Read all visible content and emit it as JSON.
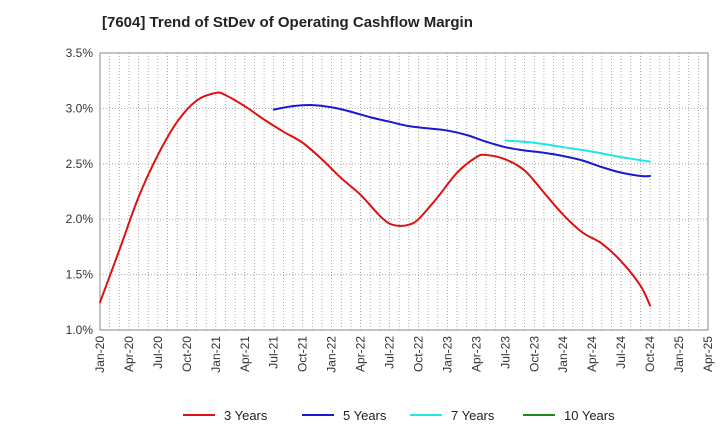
{
  "chart_data": {
    "type": "line",
    "title": "[7604]  Trend of StDev of Operating Cashflow Margin",
    "xlabel": "",
    "ylabel": "",
    "ylim": [
      1.0,
      3.5
    ],
    "y_ticks": [
      "1.0%",
      "1.5%",
      "2.0%",
      "2.5%",
      "3.0%",
      "3.5%"
    ],
    "y_tick_values": [
      1.0,
      1.5,
      2.0,
      2.5,
      3.0,
      3.5
    ],
    "x_range": [
      "2020-01",
      "2025-04"
    ],
    "x_tick_labels": [
      "Jan-20",
      "Apr-20",
      "Jul-20",
      "Oct-20",
      "Jan-21",
      "Apr-21",
      "Jul-21",
      "Oct-21",
      "Jan-22",
      "Apr-22",
      "Jul-22",
      "Oct-22",
      "Jan-23",
      "Apr-23",
      "Jul-23",
      "Oct-23",
      "Jan-24",
      "Apr-24",
      "Jul-24",
      "Oct-24",
      "Jan-25",
      "Apr-25"
    ],
    "x_tick_dates": [
      "2020-01",
      "2020-04",
      "2020-07",
      "2020-10",
      "2021-01",
      "2021-04",
      "2021-07",
      "2021-10",
      "2022-01",
      "2022-04",
      "2022-07",
      "2022-10",
      "2023-01",
      "2023-04",
      "2023-07",
      "2023-10",
      "2024-01",
      "2024-04",
      "2024-07",
      "2024-10",
      "2025-01",
      "2025-04"
    ],
    "grid": "dotted",
    "legend_position": "bottom",
    "series": [
      {
        "name": "3 Years",
        "color": "#dd1111",
        "points": [
          [
            "2020-01",
            1.25
          ],
          [
            "2020-03",
            1.72
          ],
          [
            "2020-05",
            2.2
          ],
          [
            "2020-07",
            2.58
          ],
          [
            "2020-09",
            2.88
          ],
          [
            "2020-11",
            3.07
          ],
          [
            "2021-01",
            3.14
          ],
          [
            "2021-02",
            3.12
          ],
          [
            "2021-04",
            3.02
          ],
          [
            "2021-06",
            2.9
          ],
          [
            "2021-08",
            2.79
          ],
          [
            "2021-10",
            2.69
          ],
          [
            "2021-12",
            2.54
          ],
          [
            "2022-02",
            2.37
          ],
          [
            "2022-04",
            2.22
          ],
          [
            "2022-06",
            2.03
          ],
          [
            "2022-07",
            1.96
          ],
          [
            "2022-08",
            1.94
          ],
          [
            "2022-09",
            1.95
          ],
          [
            "2022-10",
            2.0
          ],
          [
            "2022-12",
            2.2
          ],
          [
            "2023-02",
            2.42
          ],
          [
            "2023-04",
            2.56
          ],
          [
            "2023-05",
            2.58
          ],
          [
            "2023-07",
            2.54
          ],
          [
            "2023-09",
            2.44
          ],
          [
            "2023-11",
            2.24
          ],
          [
            "2024-01",
            2.04
          ],
          [
            "2024-03",
            1.88
          ],
          [
            "2024-05",
            1.78
          ],
          [
            "2024-07",
            1.62
          ],
          [
            "2024-09",
            1.4
          ],
          [
            "2024-10",
            1.22
          ]
        ]
      },
      {
        "name": "5 Years",
        "color": "#1a1acc",
        "points": [
          [
            "2021-07",
            2.99
          ],
          [
            "2021-09",
            3.02
          ],
          [
            "2021-11",
            3.03
          ],
          [
            "2022-01",
            3.01
          ],
          [
            "2022-03",
            2.97
          ],
          [
            "2022-05",
            2.92
          ],
          [
            "2022-07",
            2.88
          ],
          [
            "2022-09",
            2.84
          ],
          [
            "2022-11",
            2.82
          ],
          [
            "2023-01",
            2.8
          ],
          [
            "2023-03",
            2.76
          ],
          [
            "2023-05",
            2.7
          ],
          [
            "2023-07",
            2.65
          ],
          [
            "2023-09",
            2.62
          ],
          [
            "2023-11",
            2.6
          ],
          [
            "2024-01",
            2.57
          ],
          [
            "2024-03",
            2.53
          ],
          [
            "2024-05",
            2.47
          ],
          [
            "2024-07",
            2.42
          ],
          [
            "2024-09",
            2.39
          ],
          [
            "2024-10",
            2.39
          ]
        ]
      },
      {
        "name": "7 Years",
        "color": "#22e5e5",
        "points": [
          [
            "2023-07",
            2.71
          ],
          [
            "2023-10",
            2.69
          ],
          [
            "2024-01",
            2.65
          ],
          [
            "2024-04",
            2.61
          ],
          [
            "2024-07",
            2.56
          ],
          [
            "2024-10",
            2.52
          ]
        ]
      },
      {
        "name": "10 Years",
        "color": "#1a8a1a",
        "points": []
      }
    ]
  }
}
